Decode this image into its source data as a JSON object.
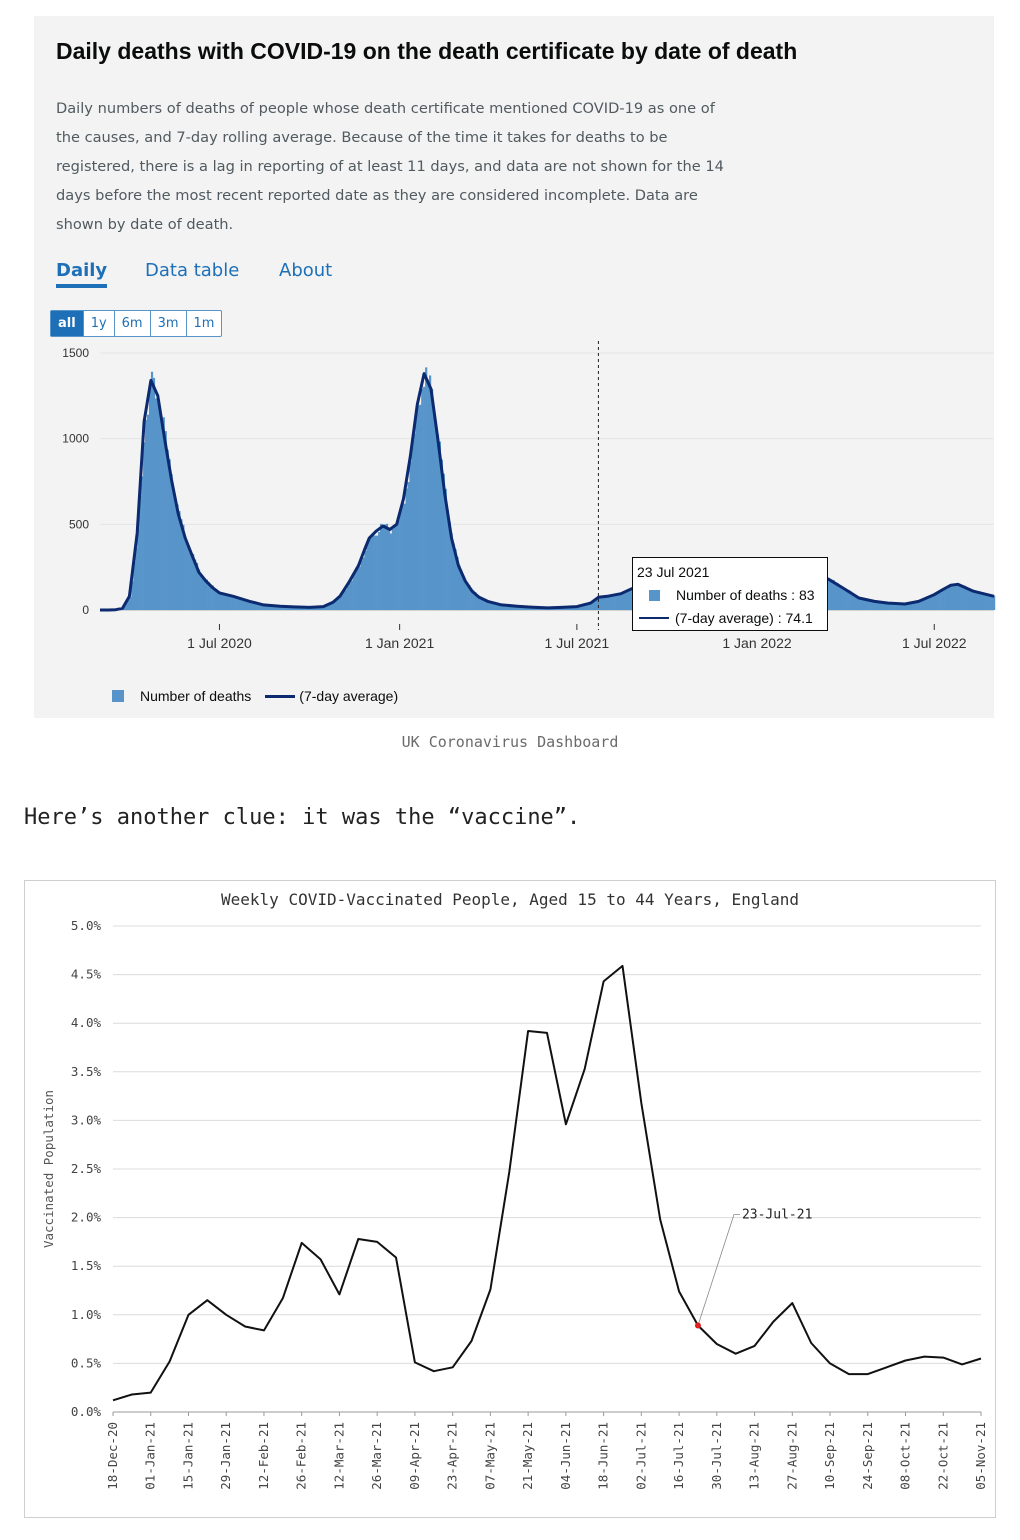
{
  "panel": {
    "title": "Daily deaths with COVID-19 on the death certificate by date of death",
    "description": "Daily numbers of deaths of people whose death certificate mentioned COVID-19 as one of the causes, and 7-day rolling average. Because of the time it takes for deaths to be registered, there is a lag in reporting of at least 11 days, and data are not shown for the 14 days before the most recent reported date as they are considered incomplete. Data are shown by date of death.",
    "tabs": [
      {
        "label": "Daily",
        "active": true
      },
      {
        "label": "Data table",
        "active": false
      },
      {
        "label": "About",
        "active": false
      }
    ],
    "ranges": [
      {
        "label": "all",
        "active": true
      },
      {
        "label": "1y",
        "active": false
      },
      {
        "label": "6m",
        "active": false
      },
      {
        "label": "3m",
        "active": false
      },
      {
        "label": "1m",
        "active": false
      }
    ],
    "tooltip": {
      "date": "23 Jul 2021",
      "deaths_label": "Number of deaths : 83",
      "avg_label": "(7-day average) : 74.1"
    },
    "legend": {
      "deaths": "Number of deaths",
      "avg": "(7-day average)"
    },
    "caption": "UK Coronavirus Dashboard",
    "colors": {
      "bar": "#5694ca",
      "line": "#0b2a6f",
      "link": "#1d70b8"
    }
  },
  "clue_text": "Here’s another clue: it was the “vaccine”.",
  "chart_data": [
    {
      "type": "area",
      "title": "",
      "x_type": "date",
      "x_ticks": [
        "1 Jul 2020",
        "1 Jan 2021",
        "1 Jul 2021",
        "1 Jan 2022",
        "1 Jul 2022"
      ],
      "y_ticks": [
        "0",
        "500",
        "1000",
        "1500"
      ],
      "ylim": [
        0,
        1500
      ],
      "x_range": [
        "2020-03-01",
        "2022-08-31"
      ],
      "grid": true,
      "legend_position": "bottom",
      "series": [
        {
          "name": "(7-day average)",
          "x": [
            "2020-03-01",
            "2020-03-10",
            "2020-03-17",
            "2020-03-24",
            "2020-03-31",
            "2020-04-08",
            "2020-04-15",
            "2020-04-22",
            "2020-04-29",
            "2020-05-06",
            "2020-05-13",
            "2020-05-20",
            "2020-05-27",
            "2020-06-03",
            "2020-06-10",
            "2020-06-17",
            "2020-06-24",
            "2020-07-01",
            "2020-07-15",
            "2020-08-01",
            "2020-08-15",
            "2020-09-01",
            "2020-09-15",
            "2020-10-01",
            "2020-10-15",
            "2020-10-25",
            "2020-11-01",
            "2020-11-10",
            "2020-11-20",
            "2020-11-26",
            "2020-12-01",
            "2020-12-08",
            "2020-12-15",
            "2020-12-22",
            "2020-12-29",
            "2021-01-05",
            "2021-01-12",
            "2021-01-19",
            "2021-01-26",
            "2021-02-02",
            "2021-02-09",
            "2021-02-16",
            "2021-02-23",
            "2021-03-02",
            "2021-03-09",
            "2021-03-16",
            "2021-03-23",
            "2021-04-01",
            "2021-04-15",
            "2021-05-01",
            "2021-05-15",
            "2021-06-01",
            "2021-06-15",
            "2021-07-01",
            "2021-07-15",
            "2021-07-23",
            "2021-08-01",
            "2021-08-15",
            "2021-09-01",
            "2021-09-15",
            "2021-10-01",
            "2021-10-15",
            "2021-11-01",
            "2021-11-15",
            "2021-12-01",
            "2021-12-15",
            "2022-01-01",
            "2022-01-10",
            "2022-01-18",
            "2022-02-01",
            "2022-02-15",
            "2022-03-01",
            "2022-03-15",
            "2022-04-01",
            "2022-04-15",
            "2022-05-01",
            "2022-05-15",
            "2022-06-01",
            "2022-06-15",
            "2022-07-01",
            "2022-07-10",
            "2022-07-18",
            "2022-07-25",
            "2022-08-10",
            "2022-08-31"
          ],
          "values": [
            0,
            0,
            2,
            10,
            80,
            450,
            1100,
            1340,
            1250,
            1000,
            760,
            560,
            420,
            320,
            220,
            170,
            130,
            100,
            80,
            50,
            30,
            22,
            18,
            15,
            20,
            45,
            80,
            160,
            260,
            350,
            420,
            460,
            490,
            470,
            500,
            650,
            900,
            1200,
            1380,
            1290,
            1000,
            680,
            420,
            260,
            170,
            110,
            75,
            50,
            30,
            22,
            17,
            12,
            15,
            20,
            40,
            74,
            80,
            95,
            140,
            150,
            130,
            120,
            125,
            135,
            160,
            130,
            125,
            140,
            165,
            160,
            180,
            210,
            180,
            120,
            70,
            50,
            40,
            35,
            50,
            90,
            120,
            145,
            150,
            110,
            80
          ]
        }
      ]
    },
    {
      "type": "line",
      "title": "Weekly COVID-Vaccinated People, Aged 15 to 44 Years, England",
      "ylabel": "Vaccinated Population",
      "xlabel": "",
      "ylim": [
        0,
        5
      ],
      "y_ticks": [
        "0.0%",
        "0.5%",
        "1.0%",
        "1.5%",
        "2.0%",
        "2.5%",
        "3.0%",
        "3.5%",
        "4.0%",
        "4.5%",
        "5.0%"
      ],
      "categories": [
        "18-Dec-20",
        "25-Dec-20",
        "01-Jan-21",
        "08-Jan-21",
        "15-Jan-21",
        "22-Jan-21",
        "29-Jan-21",
        "05-Feb-21",
        "12-Feb-21",
        "19-Feb-21",
        "26-Feb-21",
        "05-Mar-21",
        "12-Mar-21",
        "19-Mar-21",
        "26-Mar-21",
        "02-Apr-21",
        "09-Apr-21",
        "16-Apr-21",
        "23-Apr-21",
        "30-Apr-21",
        "07-May-21",
        "14-May-21",
        "21-May-21",
        "28-May-21",
        "04-Jun-21",
        "11-Jun-21",
        "18-Jun-21",
        "25-Jun-21",
        "02-Jul-21",
        "09-Jul-21",
        "16-Jul-21",
        "23-Jul-21",
        "30-Jul-21",
        "06-Aug-21",
        "13-Aug-21",
        "20-Aug-21",
        "27-Aug-21",
        "03-Sep-21",
        "10-Sep-21",
        "17-Sep-21",
        "24-Sep-21",
        "01-Oct-21",
        "08-Oct-21",
        "15-Oct-21",
        "22-Oct-21",
        "29-Oct-21",
        "05-Nov-21"
      ],
      "values": [
        0.12,
        0.18,
        0.2,
        0.52,
        1.0,
        1.15,
        1.0,
        0.88,
        0.84,
        1.17,
        1.74,
        1.57,
        1.21,
        1.78,
        1.75,
        1.59,
        0.51,
        0.42,
        0.46,
        0.73,
        1.26,
        2.47,
        3.92,
        3.9,
        2.96,
        3.53,
        4.43,
        4.59,
        3.18,
        1.98,
        1.24,
        0.89,
        0.7,
        0.6,
        0.68,
        0.93,
        1.12,
        0.71,
        0.5,
        0.39,
        0.39,
        0.46,
        0.53,
        0.57,
        0.56,
        0.49,
        0.55
      ],
      "annotation": {
        "label": "23-Jul-21",
        "category": "23-Jul-21"
      },
      "grid": true
    }
  ]
}
